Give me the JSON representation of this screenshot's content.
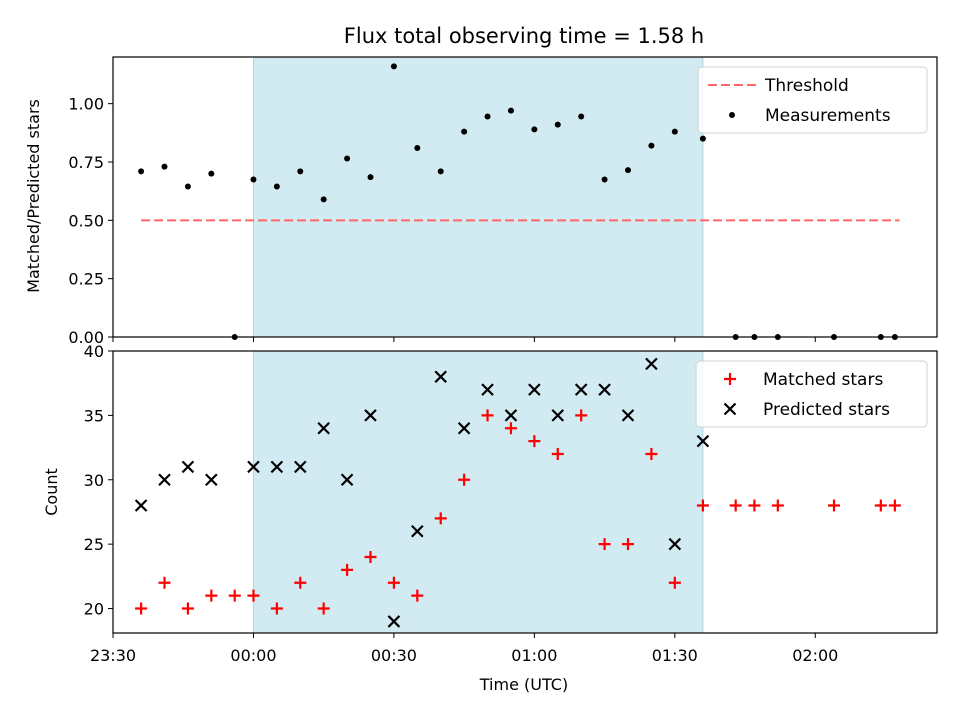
{
  "chart_data": [
    {
      "type": "scatter",
      "title": "Flux total observing time = 1.58 h",
      "xlabel": "",
      "ylabel": "Matched/Predicted stars",
      "ylim": [
        0,
        1.2
      ],
      "yticks": [
        "0.00",
        "0.25",
        "0.50",
        "0.75",
        "1.00"
      ],
      "shaded_region": {
        "start": "00:00",
        "end": "01:36",
        "color": "#add8e6"
      },
      "legend": {
        "placement": "top-right",
        "entries": [
          "Threshold",
          "Measurements"
        ]
      },
      "series": [
        {
          "name": "Threshold",
          "style": "dashed-line",
          "color": "#ff6666",
          "x": [
            "23:36",
            "02:18"
          ],
          "y": [
            0.5,
            0.5
          ]
        },
        {
          "name": "Measurements",
          "style": "dot",
          "color": "#000000",
          "x": [
            "23:36",
            "23:41",
            "23:46",
            "23:51",
            "23:56",
            "00:00",
            "00:05",
            "00:10",
            "00:15",
            "00:20",
            "00:25",
            "00:30",
            "00:35",
            "00:40",
            "00:45",
            "00:50",
            "00:55",
            "01:00",
            "01:05",
            "01:10",
            "01:15",
            "01:20",
            "01:25",
            "01:30",
            "01:36",
            "01:43",
            "01:47",
            "01:52",
            "02:04",
            "02:14",
            "02:17"
          ],
          "y": [
            0.71,
            0.73,
            0.645,
            0.7,
            0.0,
            0.675,
            0.645,
            0.71,
            0.59,
            0.765,
            0.685,
            1.16,
            0.81,
            0.71,
            0.88,
            0.945,
            0.97,
            0.89,
            0.91,
            0.945,
            0.675,
            0.715,
            0.82,
            0.88,
            0.85,
            0.0,
            0.0,
            0.0,
            0.0,
            0.0,
            0.0
          ]
        }
      ]
    },
    {
      "type": "scatter",
      "xlabel": "Time (UTC)",
      "ylabel": "Count",
      "ylim": [
        18.1,
        40
      ],
      "yticks": [
        "20",
        "25",
        "30",
        "35",
        "40"
      ],
      "xticks": [
        "23:30",
        "00:00",
        "00:30",
        "01:00",
        "01:30",
        "02:00"
      ],
      "shaded_region": {
        "start": "00:00",
        "end": "01:36",
        "color": "#add8e6"
      },
      "legend": {
        "placement": "top-right",
        "entries": [
          "Matched stars",
          "Predicted stars"
        ]
      },
      "series": [
        {
          "name": "Matched stars",
          "marker": "plus",
          "color": "#ff0000",
          "x": [
            "23:36",
            "23:41",
            "23:46",
            "23:51",
            "23:56",
            "00:00",
            "00:05",
            "00:10",
            "00:15",
            "00:20",
            "00:25",
            "00:30",
            "00:35",
            "00:40",
            "00:45",
            "00:50",
            "00:55",
            "01:00",
            "01:05",
            "01:10",
            "01:15",
            "01:20",
            "01:25",
            "01:30",
            "01:36",
            "01:43",
            "01:47",
            "01:52",
            "02:04",
            "02:14",
            "02:17"
          ],
          "y": [
            20,
            22,
            20,
            21,
            21,
            21,
            20,
            22,
            20,
            23,
            24,
            22,
            21,
            27,
            30,
            35,
            34,
            33,
            32,
            35,
            25,
            25,
            32,
            22,
            28,
            28,
            28,
            28,
            28,
            28,
            28
          ]
        },
        {
          "name": "Predicted stars",
          "marker": "cross",
          "color": "#000000",
          "x": [
            "23:36",
            "23:41",
            "23:46",
            "23:51",
            "00:00",
            "00:05",
            "00:10",
            "00:15",
            "00:20",
            "00:25",
            "00:30",
            "00:35",
            "00:40",
            "00:45",
            "00:50",
            "00:55",
            "01:00",
            "01:05",
            "01:10",
            "01:15",
            "01:20",
            "01:25",
            "01:30",
            "01:36"
          ],
          "y": [
            28,
            30,
            31,
            30,
            31,
            31,
            31,
            34,
            30,
            35,
            19,
            26,
            38,
            34,
            37,
            35,
            37,
            35,
            37,
            37,
            35,
            39,
            25,
            33
          ]
        }
      ]
    }
  ]
}
